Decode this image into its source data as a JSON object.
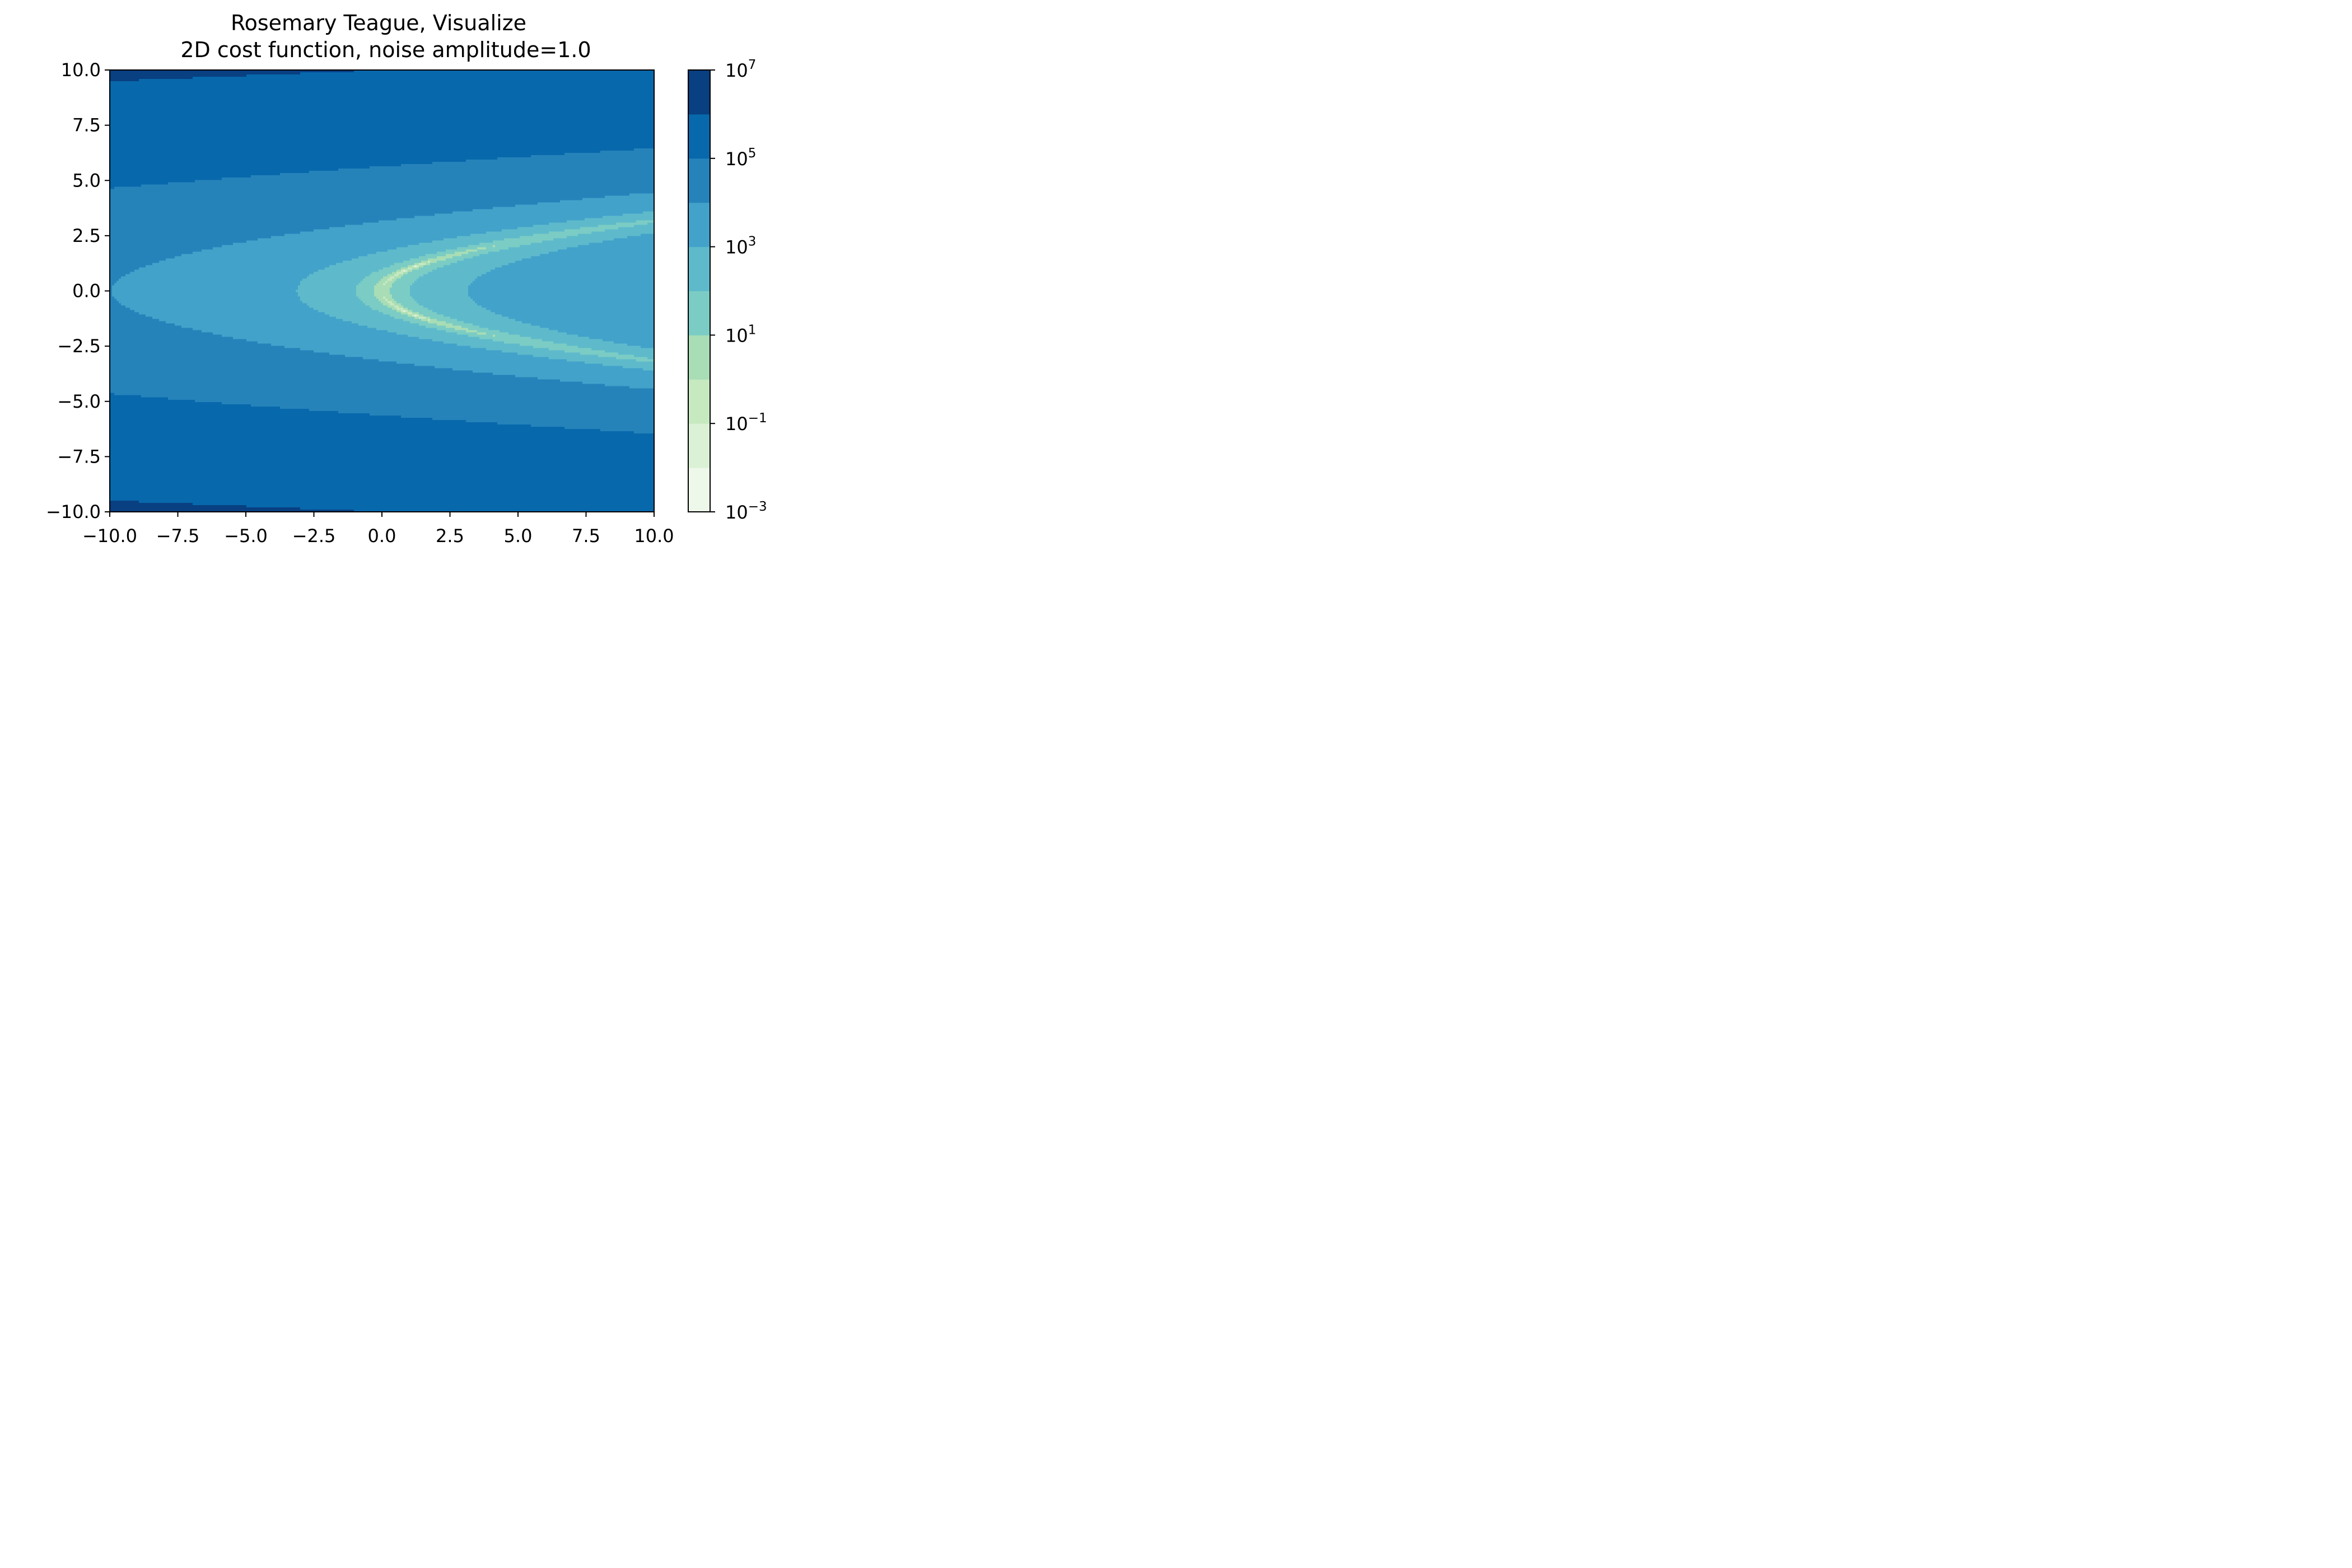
{
  "chart_data": {
    "type": "contour",
    "title_line1": "Rosemary Teague, Visualize",
    "title_line2": "2D cost function, noise amplitude=1.0",
    "xlabel": "",
    "ylabel": "",
    "xlim": [
      -10,
      10
    ],
    "ylim": [
      -10,
      10
    ],
    "x_ticks": [
      -10,
      -7.5,
      -5,
      -2.5,
      0,
      2.5,
      5,
      7.5,
      10
    ],
    "x_tick_labels": [
      "−10.0",
      "−7.5",
      "−5.0",
      "−2.5",
      "0.0",
      "2.5",
      "5.0",
      "7.5",
      "10.0"
    ],
    "y_ticks": [
      10,
      7.5,
      5,
      2.5,
      0,
      -2.5,
      -5,
      -7.5,
      -10
    ],
    "y_tick_labels": [
      "10.0",
      "7.5",
      "5.0",
      "2.5",
      "0.0",
      "−2.5",
      "−5.0",
      "−7.5",
      "−10.0"
    ],
    "function": "Rosenbrock-like 2D cost with noise",
    "noise_amplitude": 1.0,
    "colormap": "GnBu",
    "colorbar": {
      "scale": "log",
      "range_exponents": [
        -3,
        7
      ],
      "band_edges_exponents": [
        -3,
        -2,
        -1,
        0,
        1,
        2,
        3,
        4,
        5,
        6,
        7
      ],
      "band_colors": [
        "#eef8ea",
        "#dbf1d6",
        "#c7e9c0",
        "#a8ddb5",
        "#7bccc4",
        "#5ebacb",
        "#43a2ca",
        "#2683ba",
        "#0868ac",
        "#084081"
      ],
      "tick_exponents": [
        7,
        5,
        3,
        1,
        -1,
        -3
      ],
      "tick_bases": [
        "10",
        "10",
        "10",
        "10",
        "10",
        "10"
      ],
      "tick_sups": [
        "7",
        "5",
        "3",
        "1",
        "−1",
        "−3"
      ]
    }
  }
}
